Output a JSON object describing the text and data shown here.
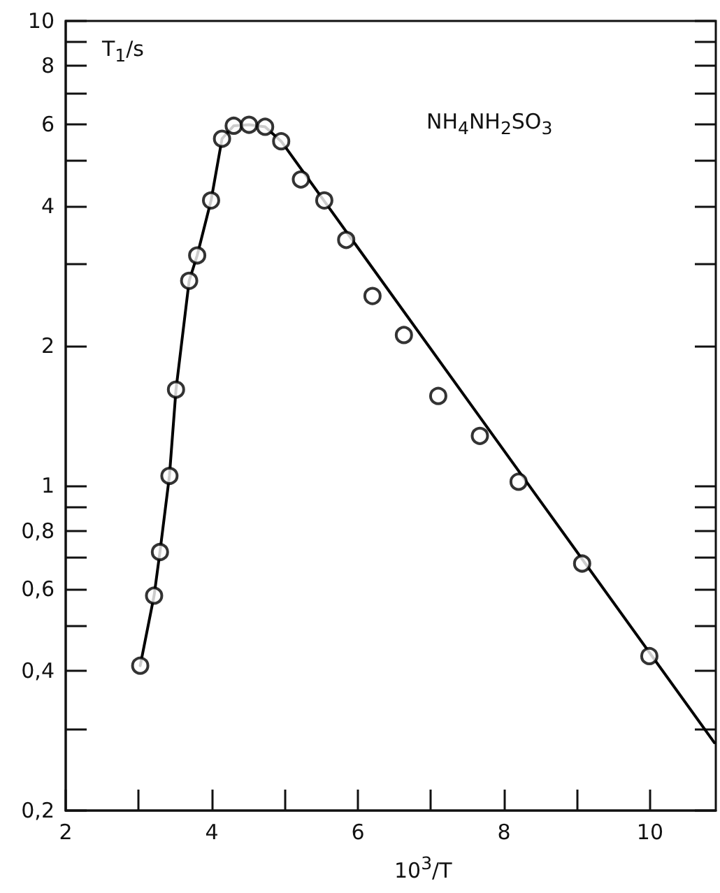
{
  "chart_data": {
    "type": "scatter",
    "xlabel": "10$^{3}$/T",
    "ylabel": "T$_{1}$/s",
    "annotations": [
      "NH$_{4}$NH$_{2}$SO$_{3}$"
    ],
    "log": "y",
    "grid": false,
    "xlim": [
      2,
      10.9
    ],
    "xticks": [
      2,
      {
        "value": 3,
        "label": null
      },
      4,
      {
        "value": 5,
        "label": null
      },
      6,
      {
        "value": 7,
        "label": null
      },
      8,
      {
        "value": 9,
        "label": null
      },
      10
    ],
    "ylim": [
      0.2,
      10
    ],
    "yticks": [
      {
        "value": 0.2,
        "label": "0,2"
      },
      {
        "value": 0.3,
        "label": null
      },
      {
        "value": 0.4,
        "label": "0,4"
      },
      {
        "value": 0.5,
        "label": null
      },
      {
        "value": 0.6,
        "label": "0,6"
      },
      {
        "value": 0.7,
        "label": null
      },
      {
        "value": 0.8,
        "label": "0,8"
      },
      {
        "value": 0.9,
        "label": null
      },
      1,
      2,
      {
        "value": 3,
        "label": null
      },
      4,
      {
        "value": 5,
        "label": null
      },
      6,
      {
        "value": 7,
        "label": null
      },
      8,
      {
        "value": 9,
        "label": null
      },
      10
    ],
    "series": [
      {
        "type": "scatter",
        "marker": "circle",
        "color": "#000000",
        "x": [
          3.02,
          3.21,
          3.29,
          3.42,
          3.51,
          3.69,
          3.8,
          3.99,
          4.14,
          4.3,
          4.51,
          4.73,
          4.95,
          5.22,
          5.54,
          5.84,
          6.2,
          6.63,
          7.1,
          7.67,
          8.2,
          9.07,
          9.99
        ],
        "values": [
          0.41,
          0.58,
          0.72,
          1.05,
          1.61,
          2.76,
          3.13,
          4.11,
          5.58,
          5.95,
          5.98,
          5.92,
          5.51,
          4.56,
          4.11,
          3.38,
          2.56,
          2.11,
          1.56,
          1.28,
          1.02,
          0.68,
          0.43
        ]
      },
      {
        "type": "line",
        "marker": "none",
        "line_style": "solid",
        "color": "#000000",
        "x": [
          3.02,
          3.21,
          3.29,
          3.42,
          3.51,
          3.69,
          3.8,
          3.99,
          4.14,
          4.3,
          4.51,
          4.73,
          4.95,
          10.88
        ],
        "values": [
          0.41,
          0.58,
          0.72,
          1.05,
          1.61,
          2.76,
          3.13,
          4.11,
          5.58,
          5.95,
          5.98,
          5.92,
          5.51,
          0.28
        ]
      }
    ]
  }
}
